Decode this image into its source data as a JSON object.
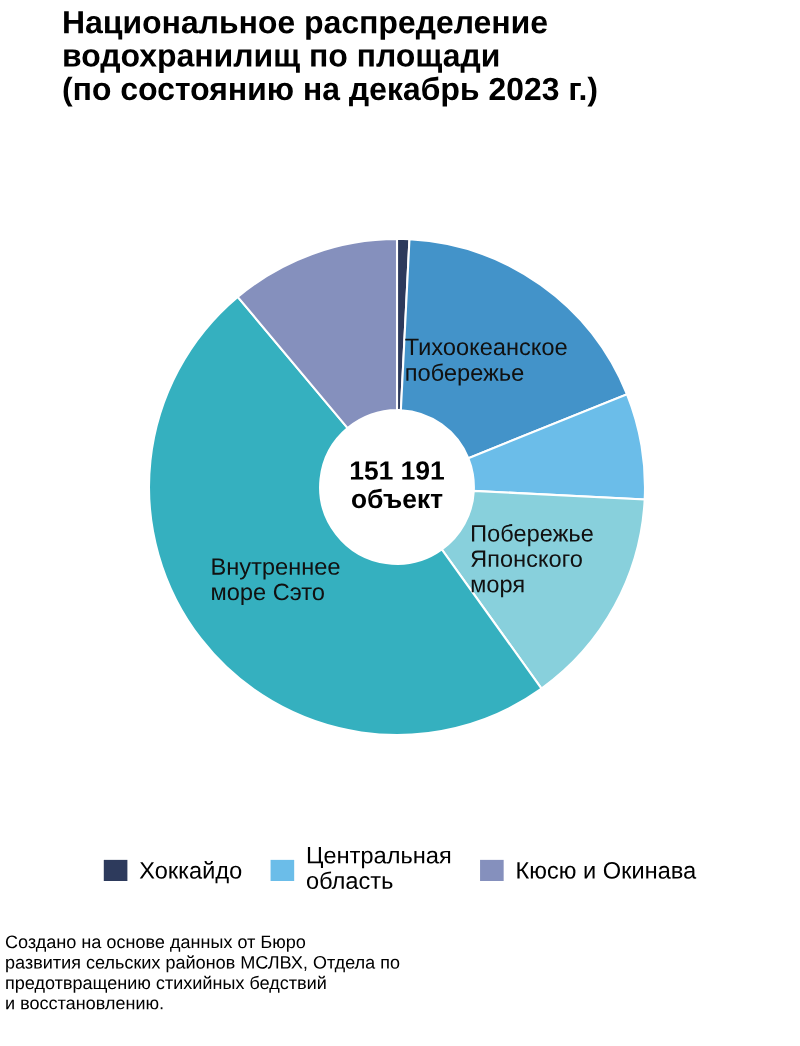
{
  "chart_data": {
    "type": "donut",
    "title": "Национальное распределение\nводохранилищ по площади\n(по состоянию на декабрь 2023 г.)",
    "categories": [
      "Хоккайдо",
      "Тихоокеанское\nпобережье",
      "Центральная\nобласть",
      "Побережье\nЯпонского\nморя",
      "Внутреннее\nморе Сэто",
      "Кюсю и Окинава"
    ],
    "values": [
      0.8,
      18.1,
      6.9,
      14.3,
      48.8,
      11.1
    ],
    "colors": [
      "#2d3a5c",
      "#4393c9",
      "#6bbde9",
      "#88d0dc",
      "#35b0bf",
      "#8590bd"
    ],
    "legend": "bottom",
    "annotations": [
      "151 191\nобъект",
      "Создано на основе данных от Бюро\nразвития сельских районов МСЛВХ, Отдела по\nпредотвращению стихийных бедствий\nи восстановлению."
    ]
  }
}
